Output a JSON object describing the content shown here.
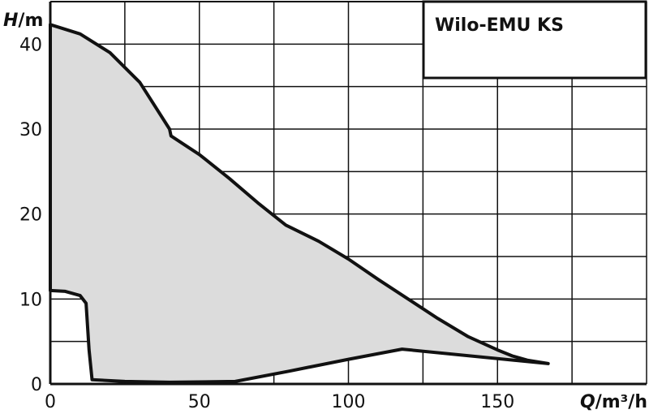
{
  "chart_data": {
    "type": "area",
    "title": "Wilo-EMU KS",
    "xlabel": "Q/m³/h",
    "ylabel": "H/m",
    "xlabel_parts": {
      "var": "Q",
      "unit": "/m³/h"
    },
    "ylabel_parts": {
      "var": "H",
      "unit": "/m"
    },
    "xlim": [
      0,
      200
    ],
    "ylim": [
      0,
      45
    ],
    "grid": true,
    "x_ticks": [
      0,
      50,
      100,
      150
    ],
    "y_ticks": [
      0,
      10,
      20,
      30,
      40
    ],
    "series": [
      {
        "x": [
          0,
          10,
          20,
          30,
          40,
          40.5,
          50,
          60,
          70,
          79,
          90,
          100,
          110,
          120,
          130,
          140,
          150,
          155,
          160,
          167,
          118,
          100,
          80,
          62,
          40,
          25,
          14,
          13,
          12,
          10,
          5,
          0
        ],
        "y": [
          42.3,
          41.2,
          39.0,
          35.5,
          30.0,
          29.2,
          27.0,
          24.2,
          21.2,
          18.7,
          16.8,
          14.7,
          12.3,
          10.0,
          7.7,
          5.6,
          4.0,
          3.3,
          2.8,
          2.4,
          4.1,
          2.9,
          1.5,
          0.3,
          0.2,
          0.3,
          0.5,
          4.0,
          9.5,
          10.4,
          10.9,
          11.0
        ]
      }
    ],
    "fill_color": "#dcdcdc",
    "line_color": "#111111"
  }
}
